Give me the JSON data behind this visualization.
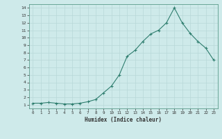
{
  "x": [
    0,
    1,
    2,
    3,
    4,
    5,
    6,
    7,
    8,
    9,
    10,
    11,
    12,
    13,
    14,
    15,
    16,
    17,
    18,
    19,
    20,
    21,
    22,
    23
  ],
  "y": [
    1.2,
    1.2,
    1.3,
    1.2,
    1.1,
    1.1,
    1.2,
    1.4,
    1.7,
    2.6,
    3.5,
    5.0,
    7.5,
    8.3,
    9.5,
    10.5,
    11.0,
    12.0,
    14.0,
    12.0,
    10.6,
    9.5,
    8.6,
    7.0
  ],
  "line_color": "#2e7d6e",
  "marker": "+",
  "marker_color": "#2e7d6e",
  "bg_color": "#ceeaea",
  "grid_color": "#b8d8d8",
  "xlabel": "Humidex (Indice chaleur)",
  "ylabel": "",
  "xlim": [
    -0.5,
    23.5
  ],
  "ylim": [
    0.5,
    14.5
  ],
  "yticks": [
    1,
    2,
    3,
    4,
    5,
    6,
    7,
    8,
    9,
    10,
    11,
    12,
    13,
    14
  ],
  "xticks": [
    0,
    1,
    2,
    3,
    4,
    5,
    6,
    7,
    8,
    9,
    10,
    11,
    12,
    13,
    14,
    15,
    16,
    17,
    18,
    19,
    20,
    21,
    22,
    23
  ],
  "title": "",
  "figsize": [
    3.2,
    2.0
  ],
  "dpi": 100
}
